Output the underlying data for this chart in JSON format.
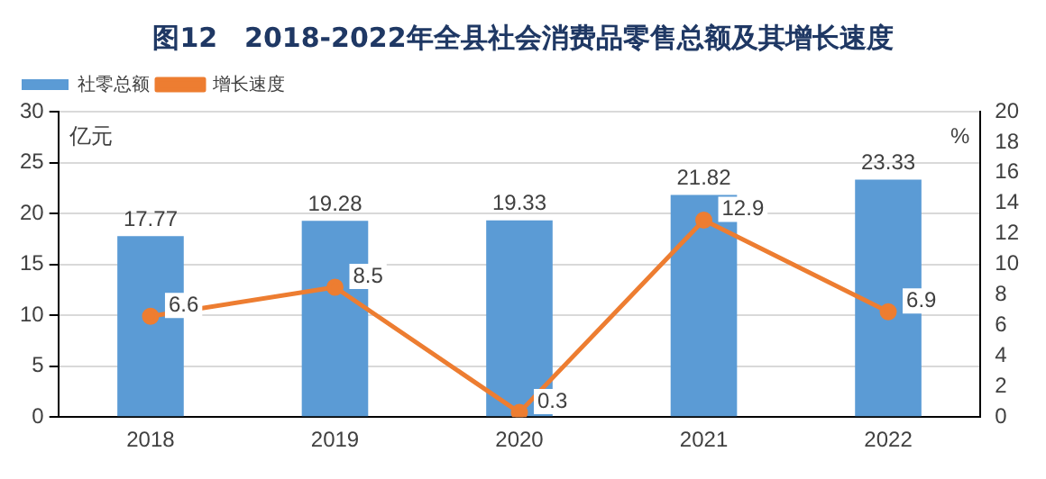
{
  "chart_data": {
    "type": "bar",
    "title": "图12　2018-2022年全县社会消费品零售总额及其增长速度",
    "ylabel": "亿元",
    "y2label": "%",
    "categories": [
      "2018",
      "2019",
      "2020",
      "2021",
      "2022"
    ],
    "series": [
      {
        "name": "社零总额",
        "color": "#5b9bd5",
        "values": [
          17.77,
          19.28,
          19.33,
          21.82,
          23.33
        ]
      },
      {
        "name": "增长速度",
        "type": "line",
        "axis": "y2",
        "color": "#ed7d31",
        "values": [
          6.6,
          8.5,
          0.3,
          12.9,
          6.9
        ]
      }
    ],
    "ylim": [
      0,
      30
    ],
    "yticks": [
      0,
      5,
      10,
      15,
      20,
      25,
      30
    ],
    "y2lim": [
      0,
      20
    ],
    "y2ticks": [
      0,
      2,
      4,
      6,
      8,
      10,
      12,
      14,
      16,
      18,
      20
    ],
    "grid": "y",
    "legend": "top left",
    "marker": "circle",
    "line_style": "solid",
    "data_labels": true
  }
}
